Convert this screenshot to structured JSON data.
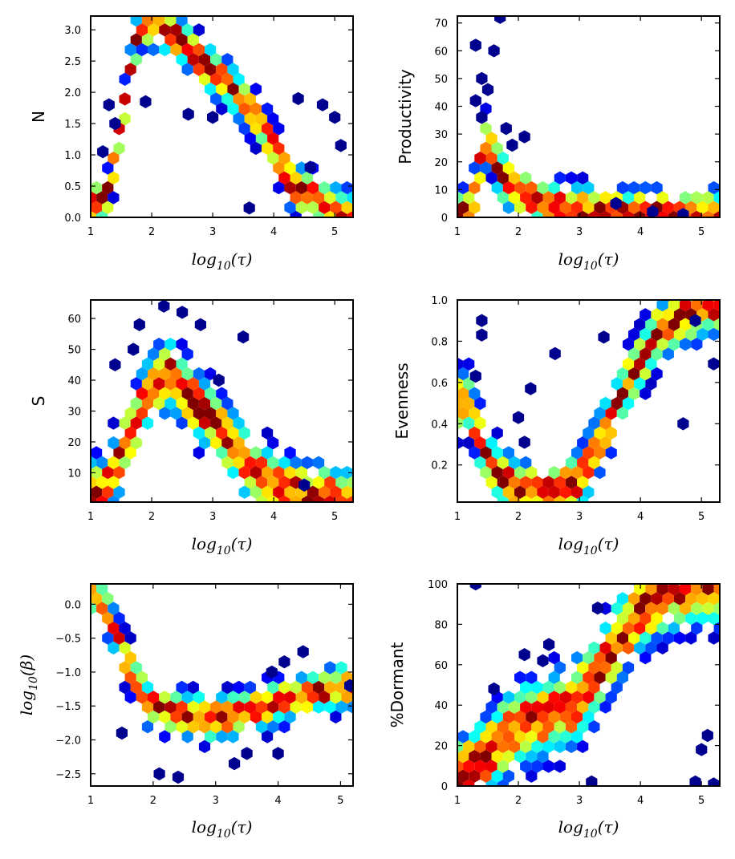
{
  "chart_data": [
    {
      "id": "N",
      "type": "heatmap",
      "xlabel": "log10(τ)",
      "ylabel": "N",
      "xlim": [
        1,
        5.3
      ],
      "ylim": [
        0,
        3.22
      ],
      "xticks": [
        1,
        2,
        3,
        4,
        5
      ],
      "yticks": [
        0.0,
        0.5,
        1.0,
        1.5,
        2.0,
        2.5,
        3.0
      ],
      "ytick_labels": [
        "0.0",
        "0.5",
        "1.0",
        "1.5",
        "2.0",
        "2.5",
        "3.0"
      ],
      "ridge": [
        [
          1.1,
          0.2
        ],
        [
          1.3,
          0.4
        ],
        [
          1.8,
          3.1
        ],
        [
          2.3,
          3.0
        ],
        [
          2.8,
          2.5
        ],
        [
          3.3,
          2.1
        ],
        [
          3.8,
          1.5
        ],
        [
          4.3,
          0.5
        ],
        [
          5.2,
          0.05
        ]
      ],
      "spread": 0.18,
      "scatter": [
        [
          1.3,
          1.8
        ],
        [
          1.4,
          1.5
        ],
        [
          1.2,
          1.05
        ],
        [
          1.9,
          1.85
        ],
        [
          2.6,
          1.65
        ],
        [
          3.0,
          1.6
        ],
        [
          4.4,
          1.9
        ],
        [
          4.8,
          1.8
        ],
        [
          5.0,
          1.6
        ],
        [
          5.1,
          1.15
        ],
        [
          3.6,
          0.15
        ],
        [
          4.6,
          0.8
        ]
      ]
    },
    {
      "id": "Productivity",
      "type": "heatmap",
      "xlabel": "log10(τ)",
      "ylabel": "Productivity",
      "xlim": [
        1,
        5.3
      ],
      "ylim": [
        0,
        72.5
      ],
      "xticks": [
        1,
        2,
        3,
        4,
        5
      ],
      "yticks": [
        0,
        10,
        20,
        30,
        40,
        50,
        60,
        70
      ],
      "ytick_labels": [
        "0",
        "10",
        "20",
        "30",
        "40",
        "50",
        "60",
        "70"
      ],
      "ridge": [
        [
          1.2,
          1
        ],
        [
          1.5,
          30
        ],
        [
          1.7,
          15
        ],
        [
          2.0,
          10
        ],
        [
          2.4,
          5
        ],
        [
          3.0,
          2
        ],
        [
          4.0,
          1
        ],
        [
          5.2,
          0.5
        ]
      ],
      "spread": 4.5,
      "scatter": [
        [
          1.3,
          62
        ],
        [
          1.6,
          60
        ],
        [
          1.7,
          72
        ],
        [
          1.4,
          50
        ],
        [
          1.5,
          46
        ],
        [
          1.3,
          42
        ],
        [
          1.4,
          36
        ],
        [
          1.8,
          32
        ],
        [
          2.1,
          29
        ],
        [
          1.9,
          26
        ],
        [
          3.6,
          5
        ],
        [
          4.2,
          2
        ],
        [
          4.7,
          1
        ]
      ]
    },
    {
      "id": "S",
      "type": "heatmap",
      "xlabel": "log10(τ)",
      "ylabel": "S",
      "xlim": [
        1,
        5.3
      ],
      "ylim": [
        0.5,
        66
      ],
      "xticks": [
        1,
        2,
        3,
        4,
        5
      ],
      "yticks": [
        10,
        20,
        30,
        40,
        50,
        60
      ],
      "ytick_labels": [
        "10",
        "20",
        "30",
        "40",
        "50",
        "60"
      ],
      "ridge": [
        [
          1.2,
          3
        ],
        [
          1.6,
          20
        ],
        [
          2.0,
          38
        ],
        [
          2.3,
          42
        ],
        [
          2.7,
          33
        ],
        [
          3.2,
          22
        ],
        [
          3.6,
          12
        ],
        [
          4.0,
          5
        ],
        [
          4.6,
          2
        ],
        [
          5.2,
          1
        ]
      ],
      "spread": 5.5,
      "scatter": [
        [
          1.8,
          58
        ],
        [
          2.2,
          64
        ],
        [
          2.5,
          62
        ],
        [
          3.5,
          54
        ],
        [
          2.8,
          58
        ],
        [
          1.4,
          45
        ],
        [
          3.1,
          40
        ],
        [
          4.5,
          6
        ],
        [
          1.7,
          50
        ]
      ]
    },
    {
      "id": "Evenness",
      "type": "heatmap",
      "xlabel": "log10(τ)",
      "ylabel": "Evenness",
      "xlim": [
        1,
        5.3
      ],
      "ylim": [
        0.02,
        1.0
      ],
      "xticks": [
        1,
        2,
        3,
        4,
        5
      ],
      "yticks": [
        0.2,
        0.4,
        0.6,
        0.8,
        1.0
      ],
      "ytick_labels": [
        "0.2",
        "0.4",
        "0.6",
        "0.8",
        "1.0"
      ],
      "ridge": [
        [
          1.2,
          0.5
        ],
        [
          1.5,
          0.2
        ],
        [
          2.0,
          0.08
        ],
        [
          2.6,
          0.06
        ],
        [
          3.0,
          0.12
        ],
        [
          3.4,
          0.35
        ],
        [
          3.8,
          0.6
        ],
        [
          4.3,
          0.85
        ],
        [
          5.1,
          0.98
        ]
      ],
      "spread": 0.07,
      "scatter": [
        [
          1.4,
          0.9
        ],
        [
          1.4,
          0.83
        ],
        [
          2.2,
          0.57
        ],
        [
          2.6,
          0.74
        ],
        [
          2.0,
          0.43
        ],
        [
          2.1,
          0.31
        ],
        [
          1.3,
          0.63
        ],
        [
          5.2,
          0.69
        ],
        [
          4.7,
          0.4
        ],
        [
          3.4,
          0.82
        ],
        [
          4.9,
          0.9
        ]
      ]
    },
    {
      "id": "beta",
      "type": "heatmap",
      "xlabel": "log10(τ)",
      "ylabel": "log10(β)",
      "xlim": [
        1,
        5.2
      ],
      "ylim": [
        -2.68,
        0.3
      ],
      "xticks": [
        1,
        2,
        3,
        4,
        5
      ],
      "yticks": [
        0.0,
        -0.5,
        -1.0,
        -1.5,
        -2.0,
        -2.5
      ],
      "ytick_labels": [
        "0.0",
        "−0.5",
        "−1.0",
        "−1.5",
        "−2.0",
        "−2.5"
      ],
      "ridge": [
        [
          1.05,
          0.15
        ],
        [
          1.3,
          -0.2
        ],
        [
          1.6,
          -0.9
        ],
        [
          1.9,
          -1.45
        ],
        [
          2.4,
          -1.6
        ],
        [
          3.0,
          -1.7
        ],
        [
          3.5,
          -1.6
        ],
        [
          4.0,
          -1.45
        ],
        [
          4.6,
          -1.3
        ],
        [
          5.1,
          -1.2
        ]
      ],
      "spread": 0.16,
      "scatter": [
        [
          2.1,
          -2.5
        ],
        [
          2.4,
          -2.55
        ],
        [
          3.3,
          -2.35
        ],
        [
          3.5,
          -2.2
        ],
        [
          4.0,
          -2.2
        ],
        [
          3.9,
          -1.0
        ],
        [
          4.1,
          -0.85
        ],
        [
          4.4,
          -0.7
        ],
        [
          5.15,
          -1.2
        ],
        [
          1.5,
          -1.9
        ]
      ]
    },
    {
      "id": "Dormant",
      "type": "heatmap",
      "xlabel": "log10(τ)",
      "ylabel": "%Dormant",
      "xlim": [
        1,
        5.3
      ],
      "ylim": [
        0,
        100
      ],
      "xticks": [
        1,
        2,
        3,
        4,
        5
      ],
      "yticks": [
        0,
        20,
        40,
        60,
        80,
        100
      ],
      "ytick_labels": [
        "0",
        "20",
        "40",
        "60",
        "80",
        "100"
      ],
      "ridge": [
        [
          1.1,
          5
        ],
        [
          1.5,
          15
        ],
        [
          1.9,
          28
        ],
        [
          2.4,
          34
        ],
        [
          2.9,
          40
        ],
        [
          3.3,
          55
        ],
        [
          3.7,
          75
        ],
        [
          4.1,
          90
        ],
        [
          4.6,
          98
        ],
        [
          5.2,
          100
        ]
      ],
      "spread": 10,
      "scatter": [
        [
          1.3,
          100
        ],
        [
          2.1,
          65
        ],
        [
          2.4,
          62
        ],
        [
          2.5,
          70
        ],
        [
          1.6,
          48
        ],
        [
          5.1,
          25
        ],
        [
          5.0,
          18
        ],
        [
          4.9,
          2
        ],
        [
          5.2,
          1
        ],
        [
          3.3,
          88
        ],
        [
          3.2,
          2
        ]
      ]
    }
  ]
}
